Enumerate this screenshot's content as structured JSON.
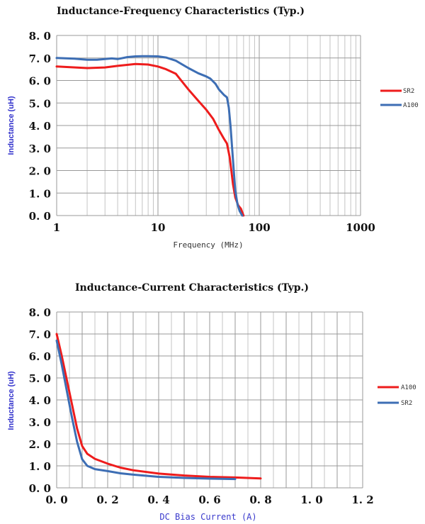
{
  "chart_data": [
    {
      "type": "line",
      "title": "Inductance-Frequency Characteristics (Typ.)",
      "xlabel": "Frequency (MHz)",
      "ylabel": "Inductance (uH)",
      "xscale": "log",
      "xlim": [
        1,
        1000
      ],
      "ylim": [
        0,
        8
      ],
      "xticks": [
        "1",
        "10",
        "100",
        "1000"
      ],
      "yticks": [
        "0.0",
        "1.0",
        "2.0",
        "3.0",
        "4.0",
        "5.0",
        "6.0",
        "7.0",
        "8.0"
      ],
      "grid": true,
      "legend": "right",
      "series": [
        {
          "name": "SR2",
          "color": "#ee1c1c",
          "x": [
            1,
            2,
            3,
            4,
            6,
            8,
            10,
            12,
            15,
            20,
            25,
            30,
            35,
            40,
            45,
            48,
            51,
            53,
            55,
            58,
            62,
            66,
            70
          ],
          "y": [
            6.62,
            6.55,
            6.58,
            6.65,
            6.73,
            6.71,
            6.62,
            6.5,
            6.3,
            5.6,
            5.1,
            4.7,
            4.3,
            3.8,
            3.4,
            3.2,
            2.6,
            2.0,
            1.4,
            0.8,
            0.45,
            0.3,
            0.0
          ]
        },
        {
          "name": "A100",
          "color": "#3d6eb4",
          "x": [
            1,
            1.5,
            2,
            2.5,
            3,
            3.5,
            4,
            5,
            6,
            7,
            8,
            10,
            12,
            15,
            20,
            25,
            30,
            33,
            37,
            40,
            45,
            48,
            50,
            52,
            54,
            56,
            58,
            61,
            64,
            68
          ],
          "y": [
            7.0,
            6.97,
            6.92,
            6.92,
            6.95,
            6.98,
            6.95,
            7.04,
            7.07,
            7.08,
            7.08,
            7.07,
            7.02,
            6.88,
            6.55,
            6.32,
            6.18,
            6.08,
            5.85,
            5.6,
            5.35,
            5.25,
            4.8,
            4.0,
            3.0,
            2.0,
            1.1,
            0.5,
            0.2,
            0.0
          ]
        }
      ]
    },
    {
      "type": "line",
      "title": "Inductance-Current Characteristics (Typ.)",
      "xlabel": "DC Bias Current (A)",
      "ylabel": "Inductance (uH)",
      "xlim": [
        0,
        1.2
      ],
      "ylim": [
        0,
        8
      ],
      "xticks": [
        "0.0",
        "0.2",
        "0.4",
        "0.6",
        "0.8",
        "1.0",
        "1.2"
      ],
      "yticks": [
        "0.0",
        "1.0",
        "2.0",
        "3.0",
        "4.0",
        "5.0",
        "6.0",
        "7.0",
        "8.0"
      ],
      "grid": true,
      "legend": "right",
      "series": [
        {
          "name": "A100",
          "color": "#ee1c1c",
          "x": [
            0,
            0.02,
            0.04,
            0.06,
            0.08,
            0.1,
            0.12,
            0.15,
            0.2,
            0.25,
            0.3,
            0.4,
            0.5,
            0.6,
            0.7,
            0.8
          ],
          "y": [
            7.0,
            6.0,
            4.9,
            3.8,
            2.7,
            1.9,
            1.55,
            1.32,
            1.1,
            0.92,
            0.8,
            0.65,
            0.56,
            0.5,
            0.47,
            0.43
          ]
        },
        {
          "name": "SR2",
          "color": "#3d6eb4",
          "x": [
            0,
            0.02,
            0.04,
            0.06,
            0.08,
            0.1,
            0.12,
            0.15,
            0.2,
            0.25,
            0.3,
            0.4,
            0.5,
            0.6,
            0.7
          ],
          "y": [
            6.7,
            5.6,
            4.4,
            3.2,
            2.1,
            1.3,
            1.0,
            0.85,
            0.76,
            0.66,
            0.6,
            0.5,
            0.45,
            0.42,
            0.4
          ]
        }
      ]
    }
  ]
}
